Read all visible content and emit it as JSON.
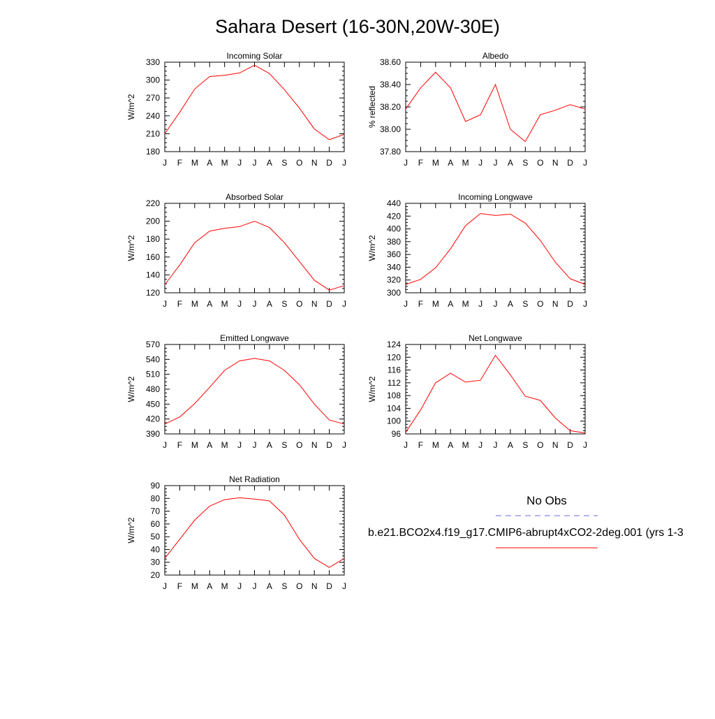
{
  "page": {
    "title": "Sahara Desert (16-30N,20W-30E)"
  },
  "legend": {
    "obs_label": "No Obs",
    "model_label": "b.e21.BCO2x4.f19_g17.CMIP6-abrupt4xCO2-2deg.001 (yrs 1-3",
    "obs_color": "#6a6ae0",
    "model_color": "#ff0000"
  },
  "chart_data": [
    {
      "type": "line",
      "title": "Incoming Solar",
      "ylabel": "W/m^2",
      "ylim": [
        180,
        330
      ],
      "yticks": [
        "180",
        "210",
        "240",
        "270",
        "300",
        "330"
      ],
      "x": [
        "J",
        "F",
        "M",
        "A",
        "M",
        "J",
        "J",
        "A",
        "S",
        "O",
        "N",
        "D",
        "J"
      ],
      "series": [
        {
          "values": [
            210,
            246,
            285,
            306,
            308,
            312,
            325,
            311,
            284,
            253,
            218,
            200,
            209
          ],
          "color": "#ff0000"
        }
      ]
    },
    {
      "type": "line",
      "title": "Albedo",
      "ylabel": "% reflected",
      "ylim": [
        37.8,
        38.6
      ],
      "yticks": [
        "37.80",
        "38.00",
        "38.20",
        "38.40",
        "38.60"
      ],
      "x": [
        "J",
        "F",
        "M",
        "A",
        "M",
        "J",
        "J",
        "A",
        "S",
        "O",
        "N",
        "D",
        "J"
      ],
      "series": [
        {
          "values": [
            38.18,
            38.37,
            38.51,
            38.37,
            38.07,
            38.13,
            38.4,
            38.0,
            37.89,
            38.13,
            38.17,
            38.22,
            38.18
          ],
          "color": "#ff0000"
        }
      ]
    },
    {
      "type": "line",
      "title": "Absorbed Solar",
      "ylabel": "W/m^2",
      "ylim": [
        120,
        220
      ],
      "yticks": [
        "120",
        "140",
        "160",
        "180",
        "200",
        "220"
      ],
      "x": [
        "J",
        "F",
        "M",
        "A",
        "M",
        "J",
        "J",
        "A",
        "S",
        "O",
        "N",
        "D",
        "J"
      ],
      "series": [
        {
          "values": [
            129,
            151,
            176,
            189,
            192,
            194,
            200,
            193,
            176,
            155,
            134,
            123,
            128
          ],
          "color": "#ff0000"
        }
      ]
    },
    {
      "type": "line",
      "title": "Incoming Longwave",
      "ylabel": "W/m^2",
      "ylim": [
        300,
        440
      ],
      "yticks": [
        "300",
        "320",
        "340",
        "360",
        "380",
        "400",
        "420",
        "440"
      ],
      "x": [
        "J",
        "F",
        "M",
        "A",
        "M",
        "J",
        "J",
        "A",
        "S",
        "O",
        "N",
        "D",
        "J"
      ],
      "series": [
        {
          "values": [
            313,
            321,
            339,
            369,
            405,
            424,
            421,
            423,
            409,
            382,
            348,
            322,
            313
          ],
          "color": "#ff0000"
        }
      ]
    },
    {
      "type": "line",
      "title": "Emitted Longwave",
      "ylabel": "W/m^2",
      "ylim": [
        390,
        570
      ],
      "yticks": [
        "390",
        "420",
        "450",
        "480",
        "510",
        "540",
        "570"
      ],
      "x": [
        "J",
        "F",
        "M",
        "A",
        "M",
        "J",
        "J",
        "A",
        "S",
        "O",
        "N",
        "D",
        "J"
      ],
      "series": [
        {
          "values": [
            410,
            424,
            451,
            484,
            518,
            537,
            542,
            537,
            518,
            489,
            450,
            418,
            410
          ],
          "color": "#ff0000"
        }
      ]
    },
    {
      "type": "line",
      "title": "Net Longwave",
      "ylabel": "W/m^2",
      "ylim": [
        96,
        124
      ],
      "yticks": [
        "96",
        "100",
        "104",
        "108",
        "112",
        "116",
        "120",
        "124"
      ],
      "x": [
        "J",
        "F",
        "M",
        "A",
        "M",
        "J",
        "J",
        "A",
        "S",
        "O",
        "N",
        "D",
        "J"
      ],
      "series": [
        {
          "values": [
            96.5,
            103.5,
            112,
            115,
            112.2,
            112.8,
            120.6,
            114.5,
            107.8,
            106.5,
            101,
            97,
            96.3
          ],
          "color": "#ff0000"
        }
      ]
    },
    {
      "type": "line",
      "title": "Net Radiation",
      "ylabel": "W/m^2",
      "ylim": [
        20,
        90
      ],
      "yticks": [
        "20",
        "30",
        "40",
        "50",
        "60",
        "70",
        "80",
        "90"
      ],
      "x": [
        "J",
        "F",
        "M",
        "A",
        "M",
        "J",
        "J",
        "A",
        "S",
        "O",
        "N",
        "D",
        "J"
      ],
      "series": [
        {
          "values": [
            33,
            48,
            63,
            74,
            79,
            80.5,
            79.5,
            78,
            67,
            48,
            33,
            26,
            33
          ],
          "color": "#ff0000"
        }
      ]
    }
  ]
}
